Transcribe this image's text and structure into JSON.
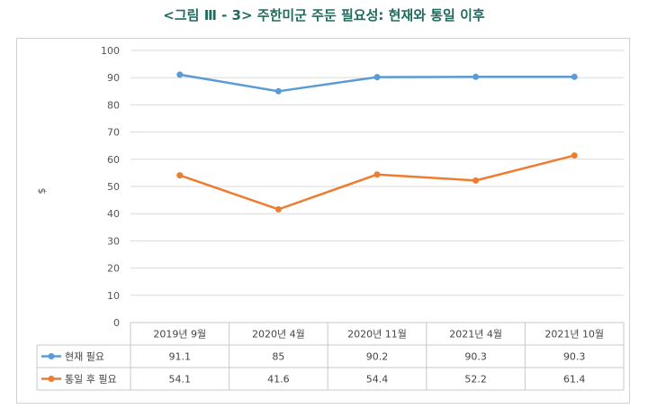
{
  "title": "<그림 Ⅲ - 3>  주한미군 주둔 필요성: 현재와 통일 이후",
  "chart_data": {
    "type": "line",
    "ylabel": "$",
    "ylim": [
      0,
      100
    ],
    "yticks": [
      0,
      10,
      20,
      30,
      40,
      50,
      60,
      70,
      80,
      90,
      100
    ],
    "categories": [
      "2019년 9월",
      "2020년 4월",
      "2020년 11월",
      "2021년 4월",
      "2021년 10월"
    ],
    "series": [
      {
        "name": "현재 필요",
        "color": "#5b9bd5",
        "values": [
          91.1,
          85,
          90.2,
          90.3,
          90.3
        ],
        "labels": [
          "91.1",
          "85",
          "90.2",
          "90.3",
          "90.3"
        ]
      },
      {
        "name": "통일 후 필요",
        "color": "#ed7d31",
        "values": [
          54.1,
          41.6,
          54.4,
          52.2,
          61.4
        ],
        "labels": [
          "54.1",
          "41.6",
          "54.4",
          "52.2",
          "61.4"
        ]
      }
    ],
    "grid": true,
    "legend": "data-table"
  }
}
